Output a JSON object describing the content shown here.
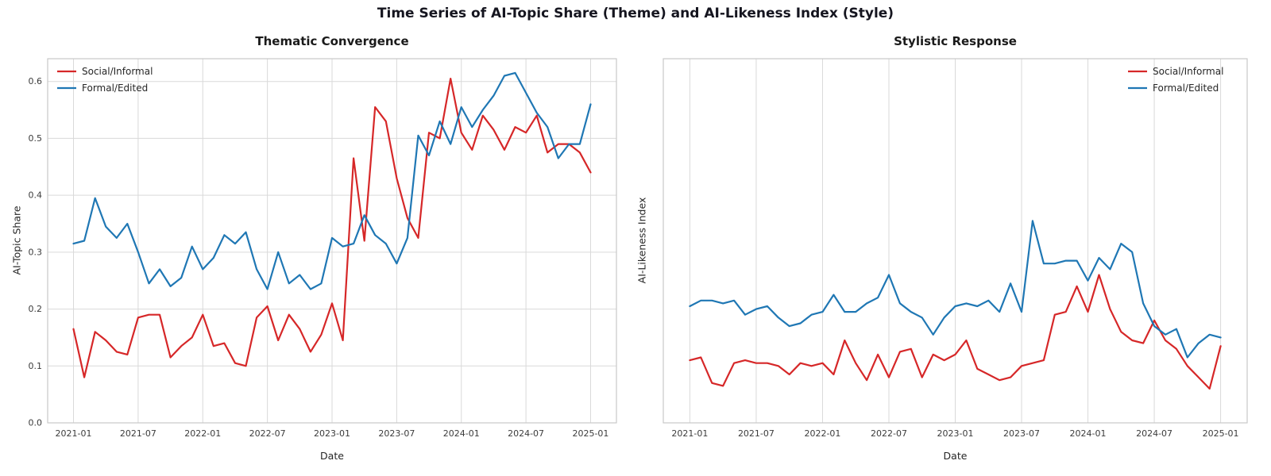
{
  "figure": {
    "suptitle": "Time Series of AI-Topic Share (Theme) and AI-Likeness Index (Style)"
  },
  "style": {
    "background": "#ffffff",
    "grid_color": "#d9d9d9",
    "spine_color": "#c9c9c9",
    "tick_color": "#3b3b3b",
    "text_color": "#262626",
    "social_color": "#d62728",
    "formal_color": "#1f77b4"
  },
  "chart_data": [
    {
      "type": "line",
      "title": "Thematic Convergence",
      "xlabel": "Date",
      "ylabel": "AI-Topic Share",
      "legend_position": "upper left",
      "grid": true,
      "ylim": [
        0.0,
        0.64
      ],
      "yticks": [
        0.0,
        0.1,
        0.2,
        0.3,
        0.4,
        0.5,
        0.6
      ],
      "x_ticklabels": [
        "2021-01",
        "2021-07",
        "2022-01",
        "2022-07",
        "2023-01",
        "2023-07",
        "2024-01",
        "2024-07",
        "2025-01"
      ],
      "x_tick_indices": [
        0,
        6,
        12,
        18,
        24,
        30,
        36,
        42,
        48
      ],
      "x": [
        "2021-01",
        "2021-02",
        "2021-03",
        "2021-04",
        "2021-05",
        "2021-06",
        "2021-07",
        "2021-08",
        "2021-09",
        "2021-10",
        "2021-11",
        "2021-12",
        "2022-01",
        "2022-02",
        "2022-03",
        "2022-04",
        "2022-05",
        "2022-06",
        "2022-07",
        "2022-08",
        "2022-09",
        "2022-10",
        "2022-11",
        "2022-12",
        "2023-01",
        "2023-02",
        "2023-03",
        "2023-04",
        "2023-05",
        "2023-06",
        "2023-07",
        "2023-08",
        "2023-09",
        "2023-10",
        "2023-11",
        "2023-12",
        "2024-01",
        "2024-02",
        "2024-03",
        "2024-04",
        "2024-05",
        "2024-06",
        "2024-07",
        "2024-08",
        "2024-09",
        "2024-10",
        "2024-11",
        "2024-12",
        "2025-01"
      ],
      "series": [
        {
          "name": "Social/Informal",
          "color": "#d62728",
          "values": [
            0.165,
            0.08,
            0.16,
            0.145,
            0.125,
            0.12,
            0.185,
            0.19,
            0.19,
            0.115,
            0.135,
            0.15,
            0.19,
            0.135,
            0.14,
            0.105,
            0.1,
            0.185,
            0.205,
            0.145,
            0.19,
            0.165,
            0.125,
            0.155,
            0.21,
            0.145,
            0.465,
            0.32,
            0.555,
            0.53,
            0.43,
            0.36,
            0.325,
            0.51,
            0.5,
            0.605,
            0.51,
            0.48,
            0.54,
            0.515,
            0.48,
            0.52,
            0.51,
            0.54,
            0.475,
            0.49,
            0.49,
            0.475,
            0.44
          ]
        },
        {
          "name": "Formal/Edited",
          "color": "#1f77b4",
          "values": [
            0.315,
            0.32,
            0.395,
            0.345,
            0.325,
            0.35,
            0.3,
            0.245,
            0.27,
            0.24,
            0.255,
            0.31,
            0.27,
            0.29,
            0.33,
            0.315,
            0.335,
            0.27,
            0.235,
            0.3,
            0.245,
            0.26,
            0.235,
            0.245,
            0.325,
            0.31,
            0.315,
            0.365,
            0.33,
            0.315,
            0.28,
            0.325,
            0.505,
            0.47,
            0.53,
            0.49,
            0.555,
            0.52,
            0.55,
            0.575,
            0.61,
            0.615,
            0.58,
            0.545,
            0.52,
            0.465,
            0.49,
            0.49,
            0.56
          ]
        }
      ]
    },
    {
      "type": "line",
      "title": "Stylistic Response",
      "xlabel": "Date",
      "ylabel": "AI-Likeness Index",
      "legend_position": "upper right",
      "grid": true,
      "ylim": [
        0.0,
        0.64
      ],
      "yticks": [],
      "x_ticklabels": [
        "2021-01",
        "2021-07",
        "2022-01",
        "2022-07",
        "2023-01",
        "2023-07",
        "2024-01",
        "2024-07",
        "2025-01"
      ],
      "x_tick_indices": [
        0,
        6,
        12,
        18,
        24,
        30,
        36,
        42,
        48
      ],
      "x": [
        "2021-01",
        "2021-02",
        "2021-03",
        "2021-04",
        "2021-05",
        "2021-06",
        "2021-07",
        "2021-08",
        "2021-09",
        "2021-10",
        "2021-11",
        "2021-12",
        "2022-01",
        "2022-02",
        "2022-03",
        "2022-04",
        "2022-05",
        "2022-06",
        "2022-07",
        "2022-08",
        "2022-09",
        "2022-10",
        "2022-11",
        "2022-12",
        "2023-01",
        "2023-02",
        "2023-03",
        "2023-04",
        "2023-05",
        "2023-06",
        "2023-07",
        "2023-08",
        "2023-09",
        "2023-10",
        "2023-11",
        "2023-12",
        "2024-01",
        "2024-02",
        "2024-03",
        "2024-04",
        "2024-05",
        "2024-06",
        "2024-07",
        "2024-08",
        "2024-09",
        "2024-10",
        "2024-11",
        "2024-12",
        "2025-01"
      ],
      "series": [
        {
          "name": "Social/Informal",
          "color": "#d62728",
          "values": [
            0.11,
            0.115,
            0.07,
            0.065,
            0.105,
            0.11,
            0.105,
            0.105,
            0.1,
            0.085,
            0.105,
            0.1,
            0.105,
            0.085,
            0.145,
            0.105,
            0.075,
            0.12,
            0.08,
            0.125,
            0.13,
            0.08,
            0.12,
            0.11,
            0.12,
            0.145,
            0.095,
            0.085,
            0.075,
            0.08,
            0.1,
            0.105,
            0.11,
            0.19,
            0.195,
            0.24,
            0.195,
            0.26,
            0.2,
            0.16,
            0.145,
            0.14,
            0.18,
            0.145,
            0.13,
            0.1,
            0.08,
            0.06,
            0.135
          ]
        },
        {
          "name": "Formal/Edited",
          "color": "#1f77b4",
          "values": [
            0.205,
            0.215,
            0.215,
            0.21,
            0.215,
            0.19,
            0.2,
            0.205,
            0.185,
            0.17,
            0.175,
            0.19,
            0.195,
            0.225,
            0.195,
            0.195,
            0.21,
            0.22,
            0.26,
            0.21,
            0.195,
            0.185,
            0.155,
            0.185,
            0.205,
            0.21,
            0.205,
            0.215,
            0.195,
            0.245,
            0.195,
            0.355,
            0.28,
            0.28,
            0.285,
            0.285,
            0.25,
            0.29,
            0.27,
            0.315,
            0.3,
            0.21,
            0.17,
            0.155,
            0.165,
            0.115,
            0.14,
            0.155,
            0.15
          ]
        }
      ]
    }
  ]
}
